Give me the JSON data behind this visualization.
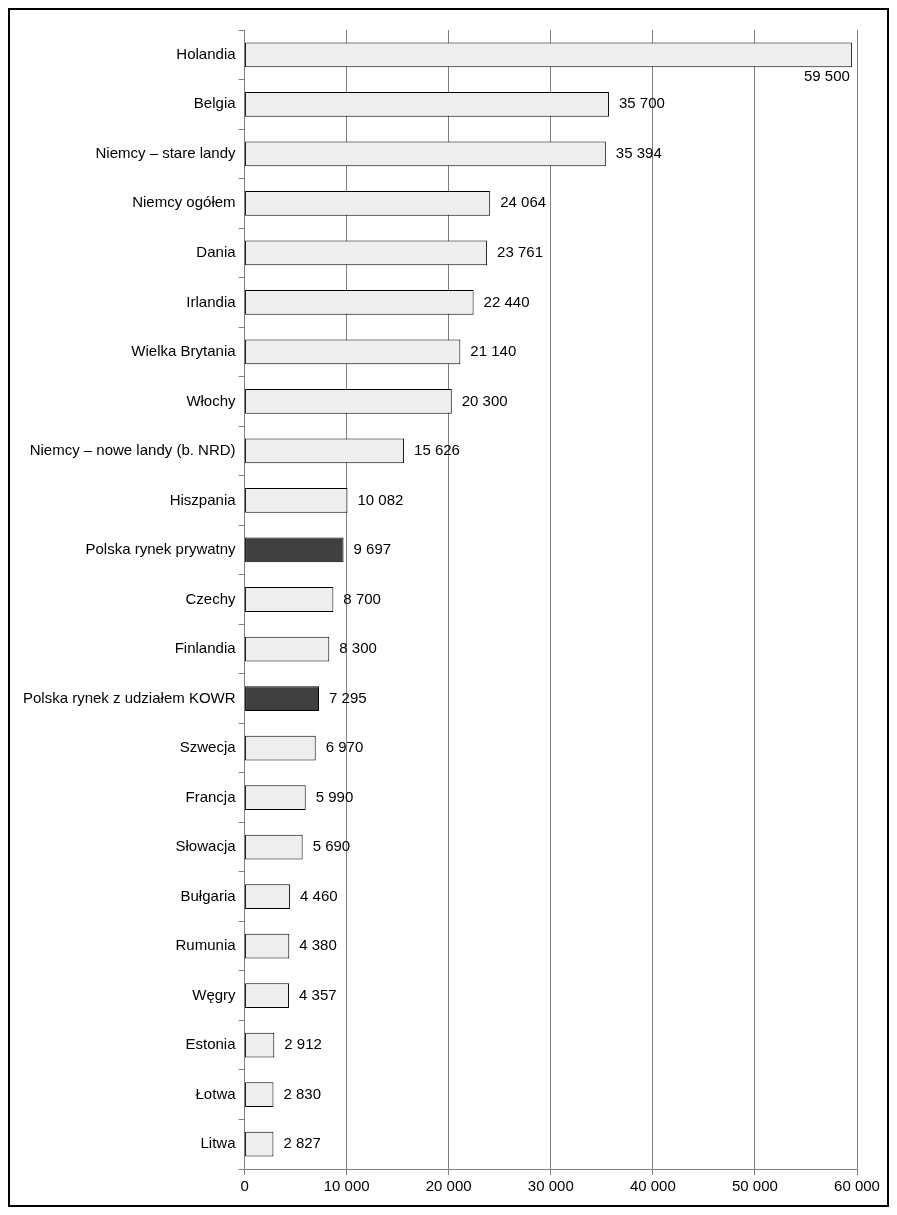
{
  "chart_data": {
    "type": "bar",
    "orientation": "horizontal",
    "categories": [
      "Holandia",
      "Belgia",
      "Niemcy – stare landy",
      "Niemcy ogółem",
      "Dania",
      "Irlandia",
      "Wielka Brytania",
      "Włochy",
      "Niemcy – nowe landy (b. NRD)",
      "Hiszpania",
      "Polska rynek prywatny",
      "Czechy",
      "Finlandia",
      "Polska rynek z udziałem KOWR",
      "Szwecja",
      "Francja",
      "Słowacja",
      "Bułgaria",
      "Rumunia",
      "Węgry",
      "Estonia",
      "Łotwa",
      "Litwa"
    ],
    "values": [
      59500,
      35700,
      35394,
      24064,
      23761,
      22440,
      21140,
      20300,
      15626,
      10082,
      9697,
      8700,
      8300,
      7295,
      6970,
      5990,
      5690,
      4460,
      4380,
      4357,
      2912,
      2830,
      2827
    ],
    "value_labels": [
      "59 500",
      "35 700",
      "35 394",
      "24 064",
      "23 761",
      "22 440",
      "21 140",
      "20 300",
      "15 626",
      "10 082",
      "9 697",
      "8 700",
      "8 300",
      "7 295",
      "6 970",
      "5 990",
      "5 690",
      "4 460",
      "4 380",
      "4 357",
      "2 912",
      "2 830",
      "2 827"
    ],
    "colors": [
      "#eeeeee",
      "#eeeeee",
      "#eeeeee",
      "#eeeeee",
      "#eeeeee",
      "#eeeeee",
      "#eeeeee",
      "#eeeeee",
      "#eeeeee",
      "#eeeeee",
      "#404040",
      "#eeeeee",
      "#eeeeee",
      "#404040",
      "#eeeeee",
      "#eeeeee",
      "#eeeeee",
      "#eeeeee",
      "#eeeeee",
      "#eeeeee",
      "#eeeeee",
      "#eeeeee",
      "#eeeeee"
    ],
    "xlim": [
      0,
      60000
    ],
    "xticks": [
      0,
      {
        "value": 10000,
        "label": "10 000"
      },
      {
        "value": 20000,
        "label": "20 000"
      },
      {
        "value": 30000,
        "label": "30 000"
      },
      {
        "value": 40000,
        "label": "40 000"
      },
      {
        "value": 50000,
        "label": "50 000"
      },
      {
        "value": 60000,
        "label": "60 000"
      }
    ],
    "grid": "x",
    "legend": false
  }
}
